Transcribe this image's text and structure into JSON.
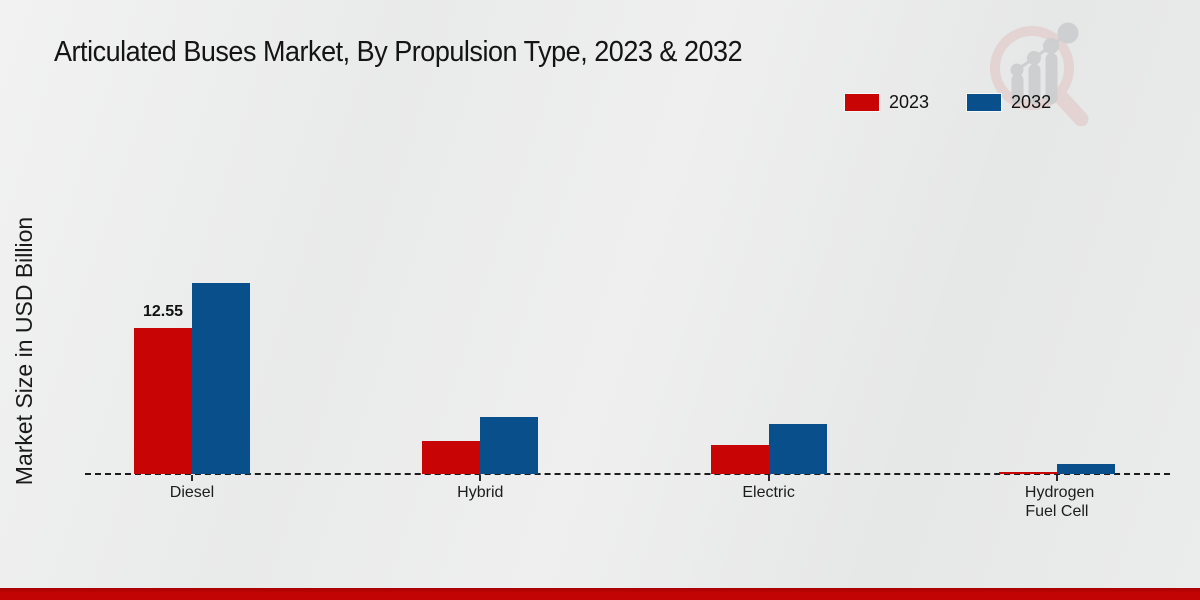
{
  "title": "Articulated Buses Market, By Propulsion Type, 2023 & 2032",
  "ylabel": "Market Size in USD Billion",
  "legend": {
    "items": [
      {
        "label": "2023",
        "color": "#c80404"
      },
      {
        "label": "2032",
        "color": "#094f8c"
      }
    ]
  },
  "icons": {
    "watermark": "magnifier-bar-chart-logo-icon"
  },
  "accent": {
    "bottom_bar_color": "#c20404"
  },
  "chart_data": {
    "type": "bar",
    "categories": [
      "Diesel",
      "Hybrid",
      "Electric",
      "Hydrogen Fuel Cell"
    ],
    "series": [
      {
        "name": "2023",
        "color": "#c80404",
        "values": [
          12.55,
          2.8,
          2.5,
          0.2
        ]
      },
      {
        "name": "2032",
        "color": "#094f8c",
        "values": [
          16.4,
          4.9,
          4.3,
          0.85
        ]
      }
    ],
    "title": "Articulated Buses Market, By Propulsion Type, 2023 & 2032",
    "xlabel": "",
    "ylabel": "Market Size in USD Billion",
    "ylim": [
      0,
      17
    ],
    "grid": false,
    "legend_position": "top-right",
    "baseline_style": "dashed",
    "data_labels": [
      {
        "category": "Diesel",
        "series": "2023",
        "text": "12.55"
      }
    ]
  }
}
